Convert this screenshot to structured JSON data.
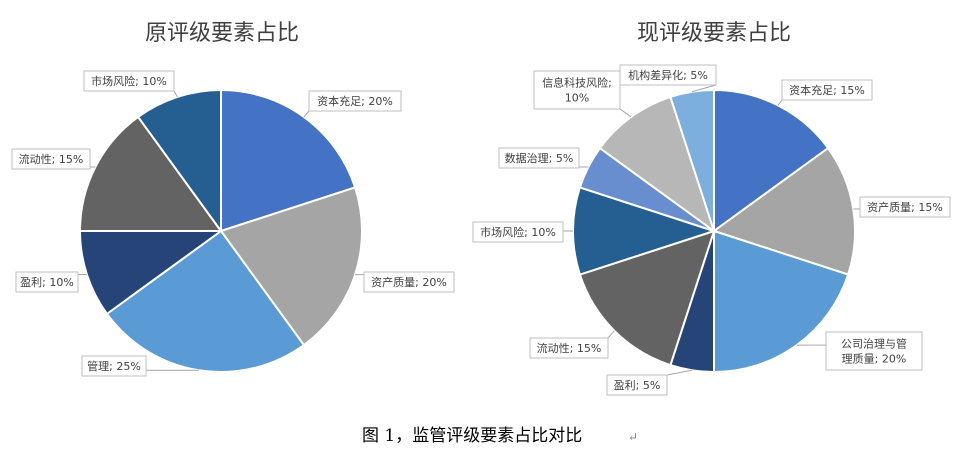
{
  "chart_data": [
    {
      "type": "pie",
      "title": "原评级要素占比",
      "slices": [
        {
          "label": "资本充足",
          "value": 20,
          "display": "资本充足; 20%",
          "color": "#4472c4"
        },
        {
          "label": "资产质量",
          "value": 20,
          "display": "资产质量; 20%",
          "color": "#a5a5a5"
        },
        {
          "label": "管理",
          "value": 25,
          "display": "管理; 25%",
          "color": "#5b9bd5"
        },
        {
          "label": "盈利",
          "value": 10,
          "display": "盈利; 10%",
          "color": "#264478"
        },
        {
          "label": "流动性",
          "value": 15,
          "display": "流动性; 15%",
          "color": "#636363"
        },
        {
          "label": "市场风险",
          "value": 10,
          "display": "市场风险; 10%",
          "color": "#255e91"
        }
      ]
    },
    {
      "type": "pie",
      "title": "现评级要素占比",
      "slices": [
        {
          "label": "资本充足",
          "value": 15,
          "display": "资本充足; 15%",
          "color": "#4472c4"
        },
        {
          "label": "资产质量",
          "value": 15,
          "display": "资产质量; 15%",
          "color": "#a5a5a5"
        },
        {
          "label": "公司治理与管理质量",
          "value": 20,
          "display_lines": [
            "公司治理与管",
            "理质量; 20%"
          ],
          "color": "#5b9bd5"
        },
        {
          "label": "盈利",
          "value": 5,
          "display": "盈利; 5%",
          "color": "#264478"
        },
        {
          "label": "流动性",
          "value": 15,
          "display": "流动性; 15%",
          "color": "#636363"
        },
        {
          "label": "市场风险",
          "value": 10,
          "display": "市场风险; 10%",
          "color": "#255e91"
        },
        {
          "label": "数据治理",
          "value": 5,
          "display": "数据治理; 5%",
          "color": "#698ed0"
        },
        {
          "label": "信息科技风险",
          "value": 10,
          "display_lines": [
            "信息科技风险;",
            "10%"
          ],
          "color": "#b7b7b7"
        },
        {
          "label": "机构差异化",
          "value": 5,
          "display": "机构差异化; 5%",
          "color": "#7cafdd"
        }
      ]
    }
  ],
  "caption": "图  1，监管评级要素占比对比"
}
